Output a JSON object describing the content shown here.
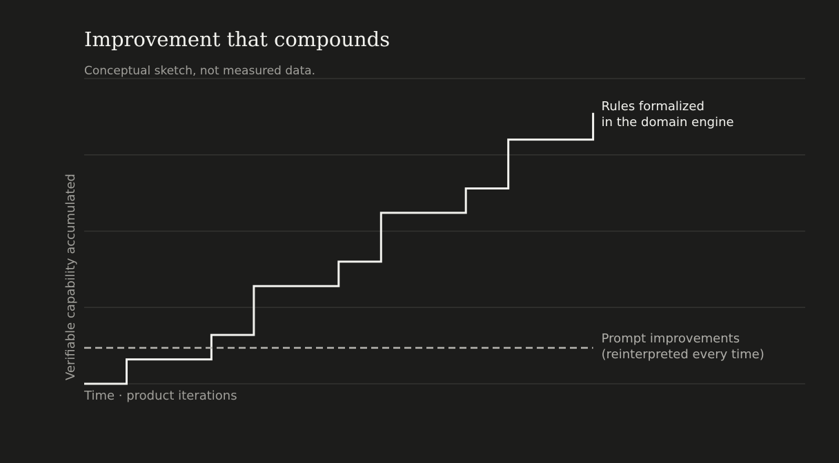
{
  "chart": {
    "title": "Improvement that compounds",
    "subtitle": "Conceptual sketch, not measured data."
  },
  "chart_data": {
    "type": "line",
    "title": "Improvement that compounds",
    "subtitle": "Conceptual sketch, not measured data.",
    "xlabel": "Time · product iterations",
    "ylabel": "Verifiable capability accumulated",
    "xlim": [
      0,
      17
    ],
    "ylim": [
      0,
      4
    ],
    "grid": true,
    "series": [
      {
        "name": "Rules formalized in the domain engine",
        "label_lines": [
          "Rules formalized",
          "in the domain engine"
        ],
        "style": "step",
        "color": "#f2f2ee",
        "x": [
          0,
          1,
          1,
          3,
          3,
          4,
          4,
          6,
          6,
          7,
          7,
          9,
          9,
          10,
          10,
          12,
          12
        ],
        "y": [
          0,
          0,
          0.32,
          0.32,
          0.64,
          0.64,
          1.28,
          1.28,
          1.6,
          1.6,
          2.24,
          2.24,
          2.56,
          2.56,
          3.2,
          3.2,
          3.55
        ]
      },
      {
        "name": "Prompt improvements (reinterpreted every time)",
        "label_lines": [
          "Prompt improvements",
          "(reinterpreted every time)"
        ],
        "style": "dashed",
        "color": "#b8b7b2",
        "x": [
          0,
          12
        ],
        "y": [
          0.47,
          0.47
        ]
      }
    ]
  }
}
